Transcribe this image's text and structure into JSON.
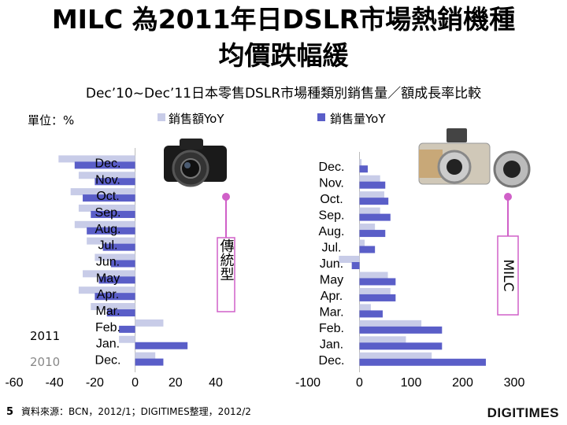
{
  "header": {
    "title_line1": "MILC 為2011年日DSLR市場熱銷機種",
    "title_line2": "均價跌幅緩",
    "subtitle": "Dec’10~Dec’11日本零售DSLR市場種類別銷售量／額成長率比較"
  },
  "unit_label": "單位：%",
  "callouts": {
    "left": "傳統型",
    "right": "MILC"
  },
  "year_labels": {
    "y2011": "2011",
    "y2010": "2010"
  },
  "colors": {
    "amount": "#c8cce8",
    "volume": "#5a5ec8",
    "callout": "#d060c8"
  },
  "footer": {
    "page": "5",
    "source": "資料來源：BCN，2012/1；DIGITIMES整理，2012/2"
  },
  "logo": "DIGITIMES",
  "chart_data": [
    {
      "type": "bar",
      "orientation": "horizontal",
      "name": "傳統型",
      "categories": [
        "Dec.",
        "Nov.",
        "Oct.",
        "Sep.",
        "Aug.",
        "Jul.",
        "Jun.",
        "May",
        "Apr.",
        "Mar.",
        "Feb.",
        "Jan.",
        "Dec."
      ],
      "series": [
        {
          "name": "銷售額YoY",
          "values": [
            -38,
            -28,
            -32,
            -28,
            -30,
            -24,
            -20,
            -26,
            -28,
            -22,
            14,
            -8,
            10
          ]
        },
        {
          "name": "銷售量YoY",
          "values": [
            -30,
            -20,
            -26,
            -22,
            -24,
            -16,
            -12,
            -18,
            -20,
            -14,
            -8,
            26,
            14
          ]
        }
      ],
      "xlim": [
        -60,
        40
      ],
      "xticks": [
        -60,
        -40,
        -20,
        0,
        20,
        40
      ],
      "legend": "top"
    },
    {
      "type": "bar",
      "orientation": "horizontal",
      "name": "MILC",
      "categories": [
        "Dec.",
        "Nov.",
        "Oct.",
        "Sep.",
        "Aug.",
        "Jul.",
        "Jun.",
        "May",
        "Apr.",
        "Mar.",
        "Feb.",
        "Jan.",
        "Dec."
      ],
      "series": [
        {
          "name": "銷售額YoY",
          "values": [
            4,
            40,
            48,
            40,
            30,
            10,
            -40,
            55,
            60,
            22,
            120,
            90,
            140
          ]
        },
        {
          "name": "銷售量YoY",
          "values": [
            16,
            50,
            56,
            60,
            50,
            30,
            -15,
            70,
            70,
            45,
            160,
            160,
            245
          ]
        }
      ],
      "xlim": [
        -100,
        300
      ],
      "xticks": [
        -100,
        0,
        100,
        200,
        300
      ],
      "legend": "top"
    }
  ]
}
